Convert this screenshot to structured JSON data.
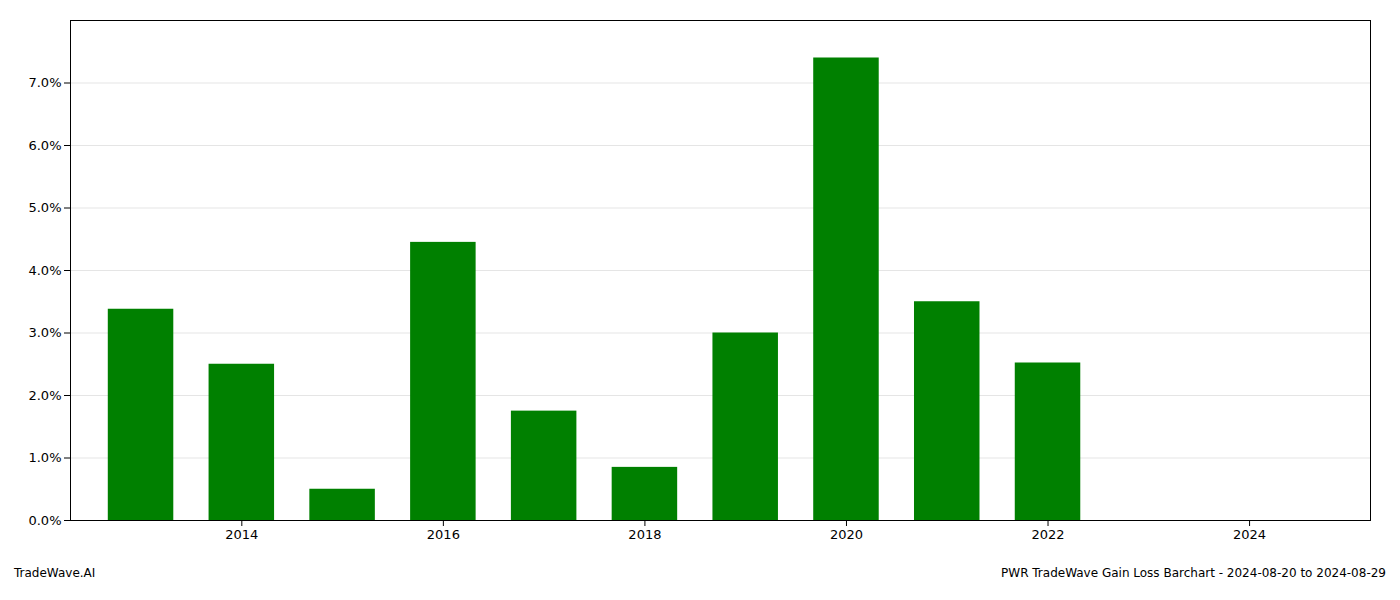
{
  "chart_data": {
    "type": "bar",
    "x": [
      2013,
      2014,
      2015,
      2016,
      2017,
      2018,
      2019,
      2020,
      2021,
      2022,
      2023
    ],
    "values": [
      0.0338,
      0.025,
      0.005,
      0.0445,
      0.0175,
      0.0085,
      0.03,
      0.074,
      0.035,
      0.0252,
      0.0
    ],
    "color": "#008000",
    "xlim": [
      2012.3,
      2025.2
    ],
    "xticks": [
      2014,
      2016,
      2018,
      2020,
      2022,
      2024
    ],
    "ylim": [
      0.0,
      0.08
    ],
    "yticks": [
      {
        "value": 0.0,
        "label": "0.0%"
      },
      {
        "value": 0.01,
        "label": "1.0%"
      },
      {
        "value": 0.02,
        "label": "2.0%"
      },
      {
        "value": 0.03,
        "label": "3.0%"
      },
      {
        "value": 0.04,
        "label": "4.0%"
      },
      {
        "value": 0.05,
        "label": "5.0%"
      },
      {
        "value": 0.06,
        "label": "6.0%"
      },
      {
        "value": 0.07,
        "label": "7.0%"
      }
    ],
    "grid": true,
    "annotations": [
      "TradeWave.AI",
      "PWR TradeWave Gain Loss Barchart - 2024-08-20 to 2024-08-29"
    ]
  }
}
